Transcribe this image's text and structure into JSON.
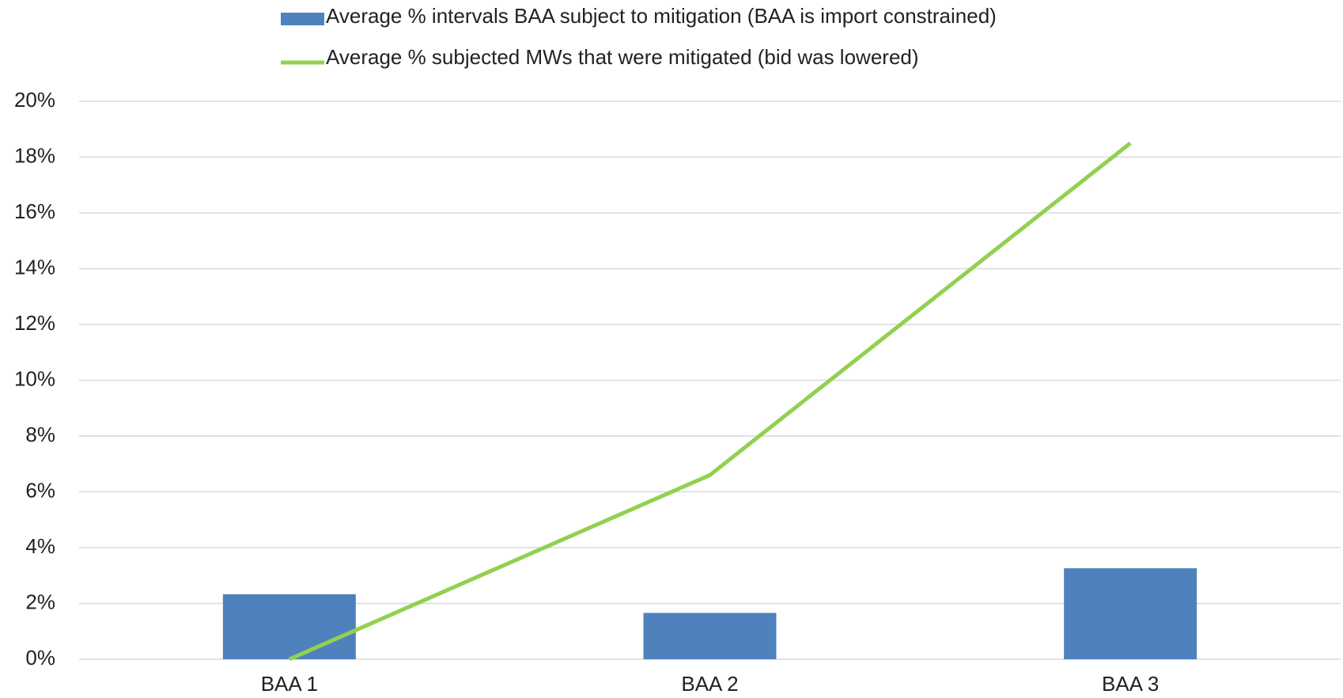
{
  "chart_data": {
    "type": "bar",
    "categories": [
      "BAA 1",
      "BAA 2",
      "BAA 3"
    ],
    "series": [
      {
        "name": "Average % intervals BAA subject to mitigation (BAA is import constrained)",
        "type": "bar",
        "color": "#4f81bd",
        "values": [
          2.33,
          1.66,
          3.26
        ]
      },
      {
        "name": "Average % subjected MWs that were mitigated (bid was lowered)",
        "type": "line",
        "color": "#92d050",
        "values": [
          0,
          6.6,
          18.5
        ]
      }
    ],
    "ylim": [
      0,
      20
    ],
    "yticks": [
      {
        "value": 0,
        "label": "0%"
      },
      {
        "value": 2,
        "label": "2%"
      },
      {
        "value": 4,
        "label": "4%"
      },
      {
        "value": 6,
        "label": "6%"
      },
      {
        "value": 8,
        "label": "8%"
      },
      {
        "value": 10,
        "label": "10%"
      },
      {
        "value": 12,
        "label": "12%"
      },
      {
        "value": 14,
        "label": "14%"
      },
      {
        "value": 16,
        "label": "16%"
      },
      {
        "value": 18,
        "label": "18%"
      },
      {
        "value": 20,
        "label": "20%"
      }
    ],
    "grid": true,
    "legend": "top"
  }
}
